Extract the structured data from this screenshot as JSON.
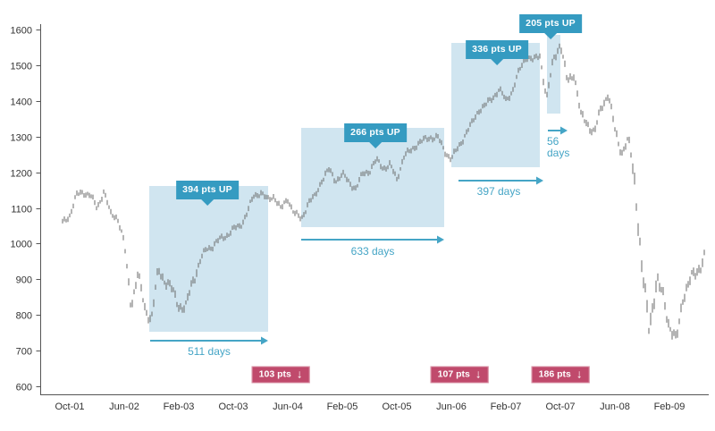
{
  "colors": {
    "advance_region": "#d0e5f0",
    "callout_teal": "#359bc1",
    "arrow_teal": "#45a5c6",
    "decline_red": "#c04a6c",
    "price_bar": "#6a6a6a",
    "axis": "#555555",
    "tick_label": "#333333"
  },
  "icons": {
    "down_arrow": "↓"
  },
  "chart_data": {
    "type": "line",
    "style": "daily high-low price bars (stock index)",
    "title": "",
    "xlabel": "",
    "ylabel": "",
    "ylim": [
      600,
      1600
    ],
    "grid": false,
    "legend": null,
    "yticks": [
      1600,
      1500,
      1400,
      1300,
      1200,
      1100,
      1000,
      900,
      800,
      700,
      600
    ],
    "xticklabels": [
      "Oct-01",
      "Jun-02",
      "Feb-03",
      "Oct-03",
      "Jun-04",
      "Feb-05",
      "Oct-05",
      "Jun-06",
      "Feb-07",
      "Oct-07",
      "Jun-08",
      "Feb-09"
    ],
    "advances": [
      {
        "label": "394 pts UP",
        "duration": "511 days"
      },
      {
        "label": "266 pts UP",
        "duration": "633 days"
      },
      {
        "label": "336 pts UP",
        "duration": "397 days"
      },
      {
        "label": "205 pts UP",
        "duration": "56 days"
      }
    ],
    "declines": [
      {
        "label": "103 pts"
      },
      {
        "label": "107 pts"
      },
      {
        "label": "186 pts"
      }
    ],
    "monthly_points": [
      [
        "2001-09",
        1055
      ],
      [
        "2001-10",
        1075
      ],
      [
        "2001-11",
        1130
      ],
      [
        "2001-12",
        1145
      ],
      [
        "2002-01",
        1140
      ],
      [
        "2002-02",
        1105
      ],
      [
        "2002-03",
        1150
      ],
      [
        "2002-04",
        1080
      ],
      [
        "2002-05",
        1070
      ],
      [
        "2002-06",
        995
      ],
      [
        "2002-07",
        825
      ],
      [
        "2002-08",
        920
      ],
      [
        "2002-09",
        830
      ],
      [
        "2002-10",
        795
      ],
      [
        "2002-11",
        925
      ],
      [
        "2002-12",
        890
      ],
      [
        "2003-01",
        860
      ],
      [
        "2003-02",
        825
      ],
      [
        "2003-03",
        820
      ],
      [
        "2003-04",
        905
      ],
      [
        "2003-05",
        950
      ],
      [
        "2003-06",
        985
      ],
      [
        "2003-07",
        990
      ],
      [
        "2003-08",
        1005
      ],
      [
        "2003-09",
        1020
      ],
      [
        "2003-10",
        1040
      ],
      [
        "2003-11",
        1055
      ],
      [
        "2003-12",
        1090
      ],
      [
        "2004-01",
        1135
      ],
      [
        "2004-02",
        1142
      ],
      [
        "2004-03",
        1115
      ],
      [
        "2004-04",
        1130
      ],
      [
        "2004-05",
        1095
      ],
      [
        "2004-06",
        1130
      ],
      [
        "2004-07",
        1090
      ],
      [
        "2004-08",
        1070
      ],
      [
        "2004-09",
        1115
      ],
      [
        "2004-10",
        1125
      ],
      [
        "2004-11",
        1175
      ],
      [
        "2004-12",
        1205
      ],
      [
        "2005-01",
        1180
      ],
      [
        "2005-02",
        1200
      ],
      [
        "2005-03",
        1175
      ],
      [
        "2005-04",
        1155
      ],
      [
        "2005-05",
        1190
      ],
      [
        "2005-06",
        1200
      ],
      [
        "2005-07",
        1230
      ],
      [
        "2005-08",
        1215
      ],
      [
        "2005-09",
        1225
      ],
      [
        "2005-10",
        1185
      ],
      [
        "2005-11",
        1245
      ],
      [
        "2005-12",
        1255
      ],
      [
        "2006-01",
        1275
      ],
      [
        "2006-02",
        1285
      ],
      [
        "2006-03",
        1300
      ],
      [
        "2006-04",
        1302
      ],
      [
        "2006-05",
        1265
      ],
      [
        "2006-06",
        1240
      ],
      [
        "2006-07",
        1265
      ],
      [
        "2006-08",
        1300
      ],
      [
        "2006-09",
        1330
      ],
      [
        "2006-10",
        1375
      ],
      [
        "2006-11",
        1390
      ],
      [
        "2006-12",
        1415
      ],
      [
        "2007-01",
        1435
      ],
      [
        "2007-02",
        1400
      ],
      [
        "2007-03",
        1425
      ],
      [
        "2007-04",
        1480
      ],
      [
        "2007-05",
        1525
      ],
      [
        "2007-06",
        1515
      ],
      [
        "2007-07",
        1535
      ],
      [
        "2007-08",
        1410
      ],
      [
        "2007-09",
        1520
      ],
      [
        "2007-10",
        1555
      ],
      [
        "2007-11",
        1445
      ],
      [
        "2007-12",
        1475
      ],
      [
        "2008-01",
        1360
      ],
      [
        "2008-02",
        1345
      ],
      [
        "2008-03",
        1315
      ],
      [
        "2008-04",
        1385
      ],
      [
        "2008-05",
        1415
      ],
      [
        "2008-06",
        1310
      ],
      [
        "2008-07",
        1250
      ],
      [
        "2008-08",
        1290
      ],
      [
        "2008-09",
        1185
      ],
      [
        "2008-10",
        930
      ],
      [
        "2008-11",
        780
      ],
      [
        "2008-12",
        875
      ],
      [
        "2009-01",
        850
      ],
      [
        "2009-02",
        760
      ],
      [
        "2009-03",
        720
      ],
      [
        "2009-04",
        865
      ],
      [
        "2009-05",
        905
      ],
      [
        "2009-06",
        930
      ],
      [
        "2009-07",
        955
      ],
      [
        "2009-08",
        985
      ]
    ]
  }
}
